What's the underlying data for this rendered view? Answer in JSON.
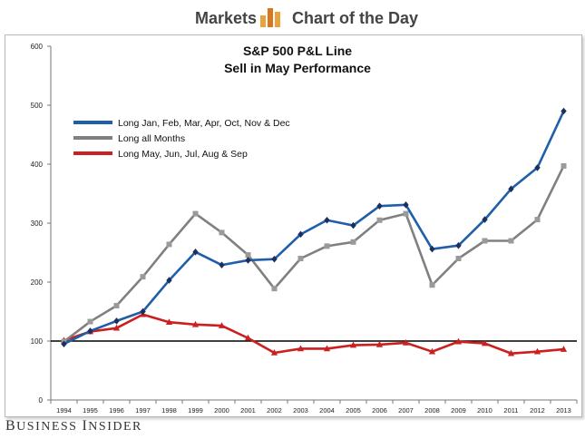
{
  "header": {
    "left": "Markets",
    "right": "Chart of the Day"
  },
  "footer": {
    "brand": "Business Insider"
  },
  "chart_data": {
    "type": "line",
    "title": "S&P 500 P&L Line",
    "subtitle": "Sell in May Performance",
    "x": [
      "1994",
      "1995",
      "1996",
      "1997",
      "1998",
      "1999",
      "2000",
      "2001",
      "2002",
      "2003",
      "2004",
      "2005",
      "2006",
      "2007",
      "2008",
      "2009",
      "2010",
      "2011",
      "2012",
      "2013"
    ],
    "ylim": [
      0,
      600
    ],
    "yticks": [
      0,
      100,
      200,
      300,
      400,
      500,
      600
    ],
    "reference_line": 100,
    "grid": false,
    "legend_position": "top-left",
    "series": [
      {
        "name": "Long Jan, Feb, Mar, Apr, Oct, Nov & Dec",
        "color": "#1f5fa8",
        "marker": "diamond",
        "marker_color": "#1c2f5e",
        "values": [
          95,
          117,
          134,
          150,
          203,
          251,
          229,
          237,
          239,
          281,
          305,
          296,
          329,
          331,
          256,
          262,
          306,
          358,
          394,
          490
        ]
      },
      {
        "name": "Long all Months",
        "color": "#808080",
        "marker": "square",
        "marker_color": "#9a9a9a",
        "values": [
          99,
          133,
          160,
          209,
          264,
          316,
          284,
          246,
          189,
          240,
          261,
          268,
          305,
          316,
          195,
          240,
          270,
          270,
          306,
          397
        ]
      },
      {
        "name": "Long May, Jun, Jul, Aug & Sep",
        "color": "#cc1f1f",
        "marker": "triangle",
        "marker_color": "#cc1f1f",
        "values": [
          101,
          116,
          122,
          145,
          132,
          128,
          126,
          105,
          80,
          87,
          87,
          93,
          94,
          97,
          82,
          99,
          96,
          79,
          82,
          86
        ]
      }
    ]
  }
}
